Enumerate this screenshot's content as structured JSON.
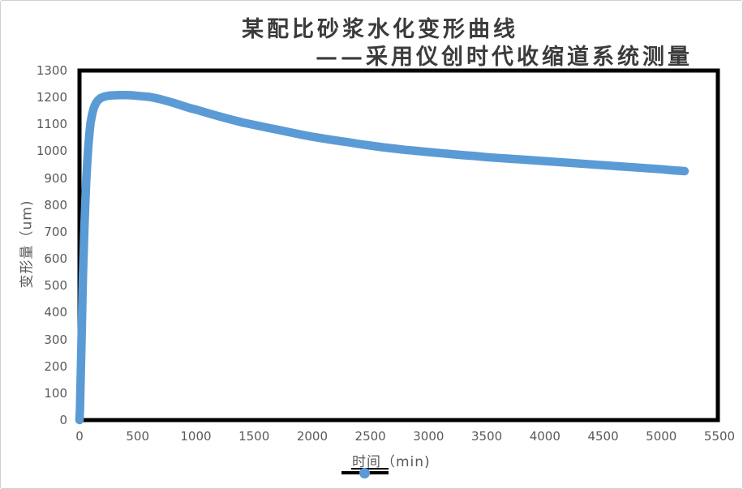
{
  "window": {
    "background": "#ffffff",
    "border_color": "#cfcfcf"
  },
  "title": {
    "line1": "某配比砂浆水化变形曲线",
    "line2": "——采用仪创时代收缩道系统测量",
    "color": "#3b3b3b"
  },
  "legend": {
    "label": "时间（min)",
    "key_line_color": "#000000",
    "key_dot_color": "#5B9BD5"
  },
  "axis_text_color": "#595959",
  "plot_border_color": "#000000",
  "chart_data": {
    "type": "line",
    "title": "某配比砂浆水化变形曲线 ——采用仪创时代收缩道系统测量",
    "xlabel": "时间（min)",
    "ylabel": "变形量（um)",
    "xlim": [
      0,
      5500
    ],
    "ylim": [
      0,
      1300
    ],
    "x_ticks": [
      0,
      500,
      1000,
      1500,
      2000,
      2500,
      3000,
      3500,
      4000,
      4500,
      5000,
      5500
    ],
    "y_ticks": [
      0,
      100,
      200,
      300,
      400,
      500,
      600,
      700,
      800,
      900,
      1000,
      1100,
      1200,
      1300
    ],
    "grid": false,
    "legend_position": "bottom",
    "series": [
      {
        "name": "时间（min)",
        "color": "#5B9BD5",
        "marker": "circle",
        "points": [
          [
            0,
            0
          ],
          [
            4,
            40
          ],
          [
            8,
            110
          ],
          [
            12,
            190
          ],
          [
            16,
            270
          ],
          [
            20,
            350
          ],
          [
            25,
            450
          ],
          [
            30,
            540
          ],
          [
            36,
            630
          ],
          [
            42,
            710
          ],
          [
            50,
            810
          ],
          [
            58,
            890
          ],
          [
            66,
            955
          ],
          [
            75,
            1015
          ],
          [
            85,
            1065
          ],
          [
            95,
            1105
          ],
          [
            110,
            1140
          ],
          [
            125,
            1163
          ],
          [
            140,
            1178
          ],
          [
            160,
            1190
          ],
          [
            180,
            1197
          ],
          [
            200,
            1201
          ],
          [
            230,
            1205
          ],
          [
            260,
            1207
          ],
          [
            300,
            1208
          ],
          [
            350,
            1209
          ],
          [
            400,
            1209
          ],
          [
            450,
            1208
          ],
          [
            500,
            1206
          ],
          [
            550,
            1204
          ],
          [
            600,
            1202
          ],
          [
            650,
            1198
          ],
          [
            700,
            1193
          ],
          [
            750,
            1187
          ],
          [
            800,
            1181
          ],
          [
            850,
            1174
          ],
          [
            900,
            1167
          ],
          [
            950,
            1160
          ],
          [
            1000,
            1155
          ],
          [
            1100,
            1142
          ],
          [
            1200,
            1130
          ],
          [
            1300,
            1118
          ],
          [
            1400,
            1107
          ],
          [
            1500,
            1098
          ],
          [
            1600,
            1089
          ],
          [
            1700,
            1080
          ],
          [
            1800,
            1071
          ],
          [
            1900,
            1062
          ],
          [
            2000,
            1054
          ],
          [
            2100,
            1047
          ],
          [
            2200,
            1040
          ],
          [
            2300,
            1034
          ],
          [
            2400,
            1027
          ],
          [
            2500,
            1021
          ],
          [
            2600,
            1015
          ],
          [
            2700,
            1010
          ],
          [
            2800,
            1005
          ],
          [
            2900,
            1001
          ],
          [
            3000,
            997
          ],
          [
            3100,
            993
          ],
          [
            3200,
            989
          ],
          [
            3300,
            985
          ],
          [
            3400,
            982
          ],
          [
            3500,
            978
          ],
          [
            3600,
            975
          ],
          [
            3700,
            972
          ],
          [
            3800,
            969
          ],
          [
            3900,
            966
          ],
          [
            4000,
            963
          ],
          [
            4100,
            960
          ],
          [
            4200,
            957
          ],
          [
            4300,
            954
          ],
          [
            4400,
            951
          ],
          [
            4500,
            948
          ],
          [
            4600,
            945
          ],
          [
            4700,
            942
          ],
          [
            4800,
            939
          ],
          [
            4900,
            936
          ],
          [
            5000,
            933
          ],
          [
            5100,
            929
          ],
          [
            5200,
            926
          ]
        ]
      }
    ]
  }
}
